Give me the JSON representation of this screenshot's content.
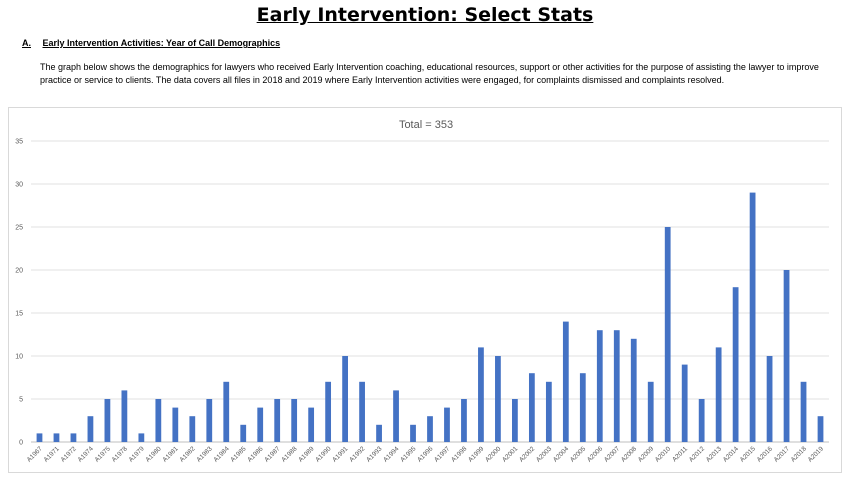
{
  "page": {
    "title": "Early Intervention: Select Stats",
    "section_letter": "A.",
    "section_title": "Early Intervention Activities: Year of Call Demographics",
    "description": "The graph below shows the demographics for lawyers who received Early Intervention coaching, educational resources, support or other activities for the purpose of assisting the lawyer to improve practice or service to clients.  The data covers all files in 2018 and 2019 where Early Intervention activities were engaged, for complaints dismissed and complaints resolved."
  },
  "chart_data": {
    "type": "bar",
    "title": "Total = 353",
    "xlabel": "",
    "ylabel": "",
    "ylim": [
      0,
      35
    ],
    "yticks": [
      0,
      5,
      10,
      15,
      20,
      25,
      30,
      35
    ],
    "grid": true,
    "legend": "none",
    "bar_color": "#4472c4",
    "categories": [
      "A1967",
      "A1971",
      "A1972",
      "A1974",
      "A1975",
      "A1978",
      "A1979",
      "A1980",
      "A1981",
      "A1982",
      "A1983",
      "A1984",
      "A1985",
      "A1986",
      "A1987",
      "A1988",
      "A1989",
      "A1990",
      "A1991",
      "A1992",
      "A1993",
      "A1994",
      "A1995",
      "A1996",
      "A1997",
      "A1998",
      "A1999",
      "A2000",
      "A2001",
      "A2002",
      "A2003",
      "A2004",
      "A2005",
      "A2006",
      "A2007",
      "A2008",
      "A2009",
      "A2010",
      "A2011",
      "A2012",
      "A2013",
      "A2014",
      "A2015",
      "A2016",
      "A2017",
      "A2018",
      "A2019"
    ],
    "values": [
      1,
      1,
      1,
      3,
      5,
      6,
      1,
      5,
      4,
      3,
      5,
      7,
      2,
      4,
      5,
      5,
      4,
      7,
      10,
      7,
      2,
      6,
      2,
      3,
      4,
      5,
      11,
      10,
      5,
      8,
      7,
      14,
      8,
      13,
      13,
      12,
      7,
      25,
      9,
      5,
      11,
      18,
      29,
      10,
      20,
      7,
      3
    ]
  }
}
